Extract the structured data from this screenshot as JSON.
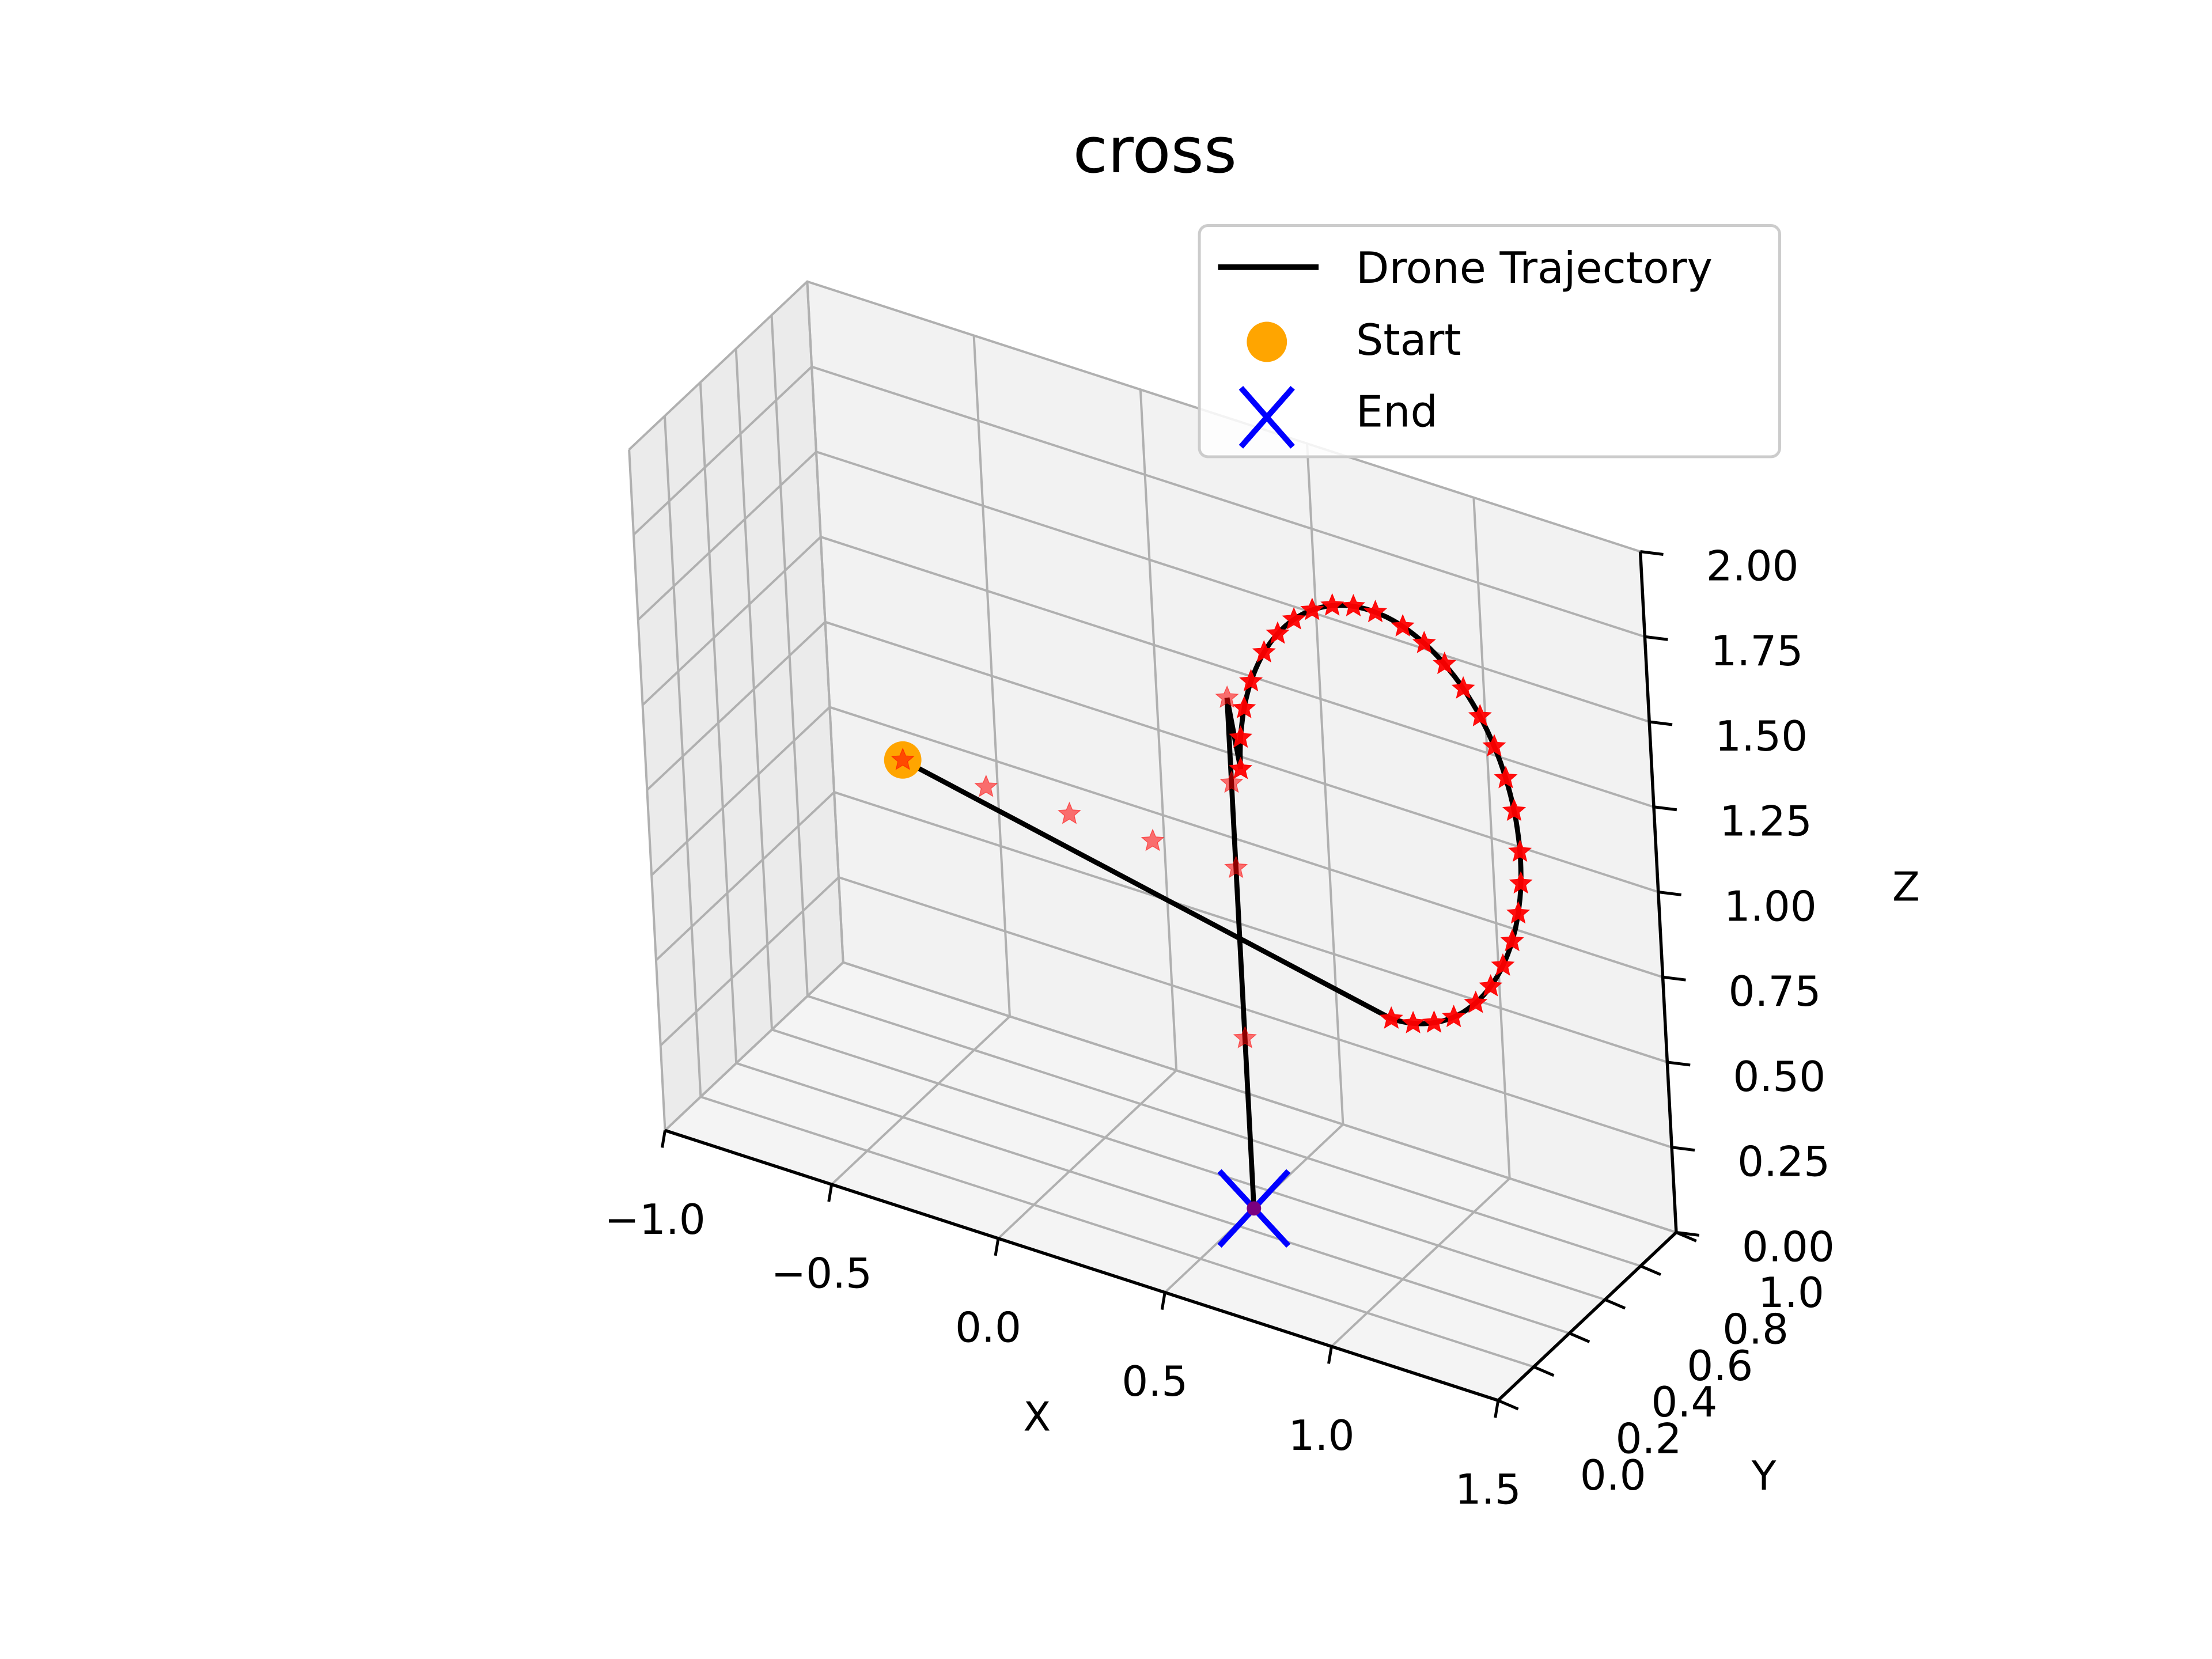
{
  "chart_data": {
    "type": "line",
    "projection": "3d",
    "title": "cross",
    "xlabel": "X",
    "ylabel": "Y",
    "zlabel": "Z",
    "xlim": [
      -1.0,
      1.5
    ],
    "ylim": [
      0.0,
      1.0
    ],
    "zlim": [
      0.0,
      2.0
    ],
    "xticks": [
      "−1.0",
      "−0.5",
      "0.0",
      "0.5",
      "1.0",
      "1.5"
    ],
    "yticks": [
      "0.0",
      "0.2",
      "0.4",
      "0.6",
      "0.8",
      "1.0"
    ],
    "zticks": [
      "0.00",
      "0.25",
      "0.50",
      "0.75",
      "1.00",
      "1.25",
      "1.50",
      "1.75",
      "2.00"
    ],
    "grid": true,
    "legend_position": "top-right",
    "legend": [
      {
        "label": "Drone Trajectory",
        "marker": "line",
        "color": "#000000"
      },
      {
        "label": "Start",
        "marker": "circle",
        "color": "#ffa500"
      },
      {
        "label": "End",
        "marker": "x",
        "color": "#0000ff"
      }
    ],
    "series": [
      {
        "name": "Drone Trajectory",
        "color": "#000000",
        "points": [
          [
            -0.5,
            0.5,
            1.0
          ],
          [
            0.0,
            0.5,
            1.0
          ],
          [
            0.5,
            0.5,
            1.0
          ],
          [
            1.0,
            0.5,
            1.0
          ],
          [
            1.5,
            0.5,
            1.0
          ]
        ],
        "segments": [
          [
            [
              -0.5,
              0.5,
              1.0
            ],
            [
              1.0,
              0.5,
              1.0
            ]
          ],
          [
            [
              0.5,
              0.5,
              0.0
            ],
            [
              0.5,
              0.5,
              1.5
            ]
          ]
        ]
      }
    ],
    "waypoints": {
      "color": "#ff0000",
      "marker": "star",
      "points": [
        [
          -0.5,
          0.5,
          1.0
        ],
        [
          -0.25,
          0.5,
          1.0
        ],
        [
          0.0,
          0.5,
          1.0
        ],
        [
          0.25,
          0.5,
          1.0
        ],
        [
          0.5,
          0.5,
          1.0
        ],
        [
          0.5,
          0.5,
          0.5
        ],
        [
          0.5,
          0.5,
          1.25
        ],
        [
          0.5,
          0.5,
          1.5
        ]
      ]
    },
    "loop": {
      "center": [
        0.95,
        0.5,
        1.3
      ],
      "radius_x": 0.42,
      "radius_z": 0.6,
      "stars": 30
    },
    "start": [
      -0.5,
      0.5,
      1.0
    ],
    "end": [
      0.5,
      0.5,
      0.0
    ]
  }
}
